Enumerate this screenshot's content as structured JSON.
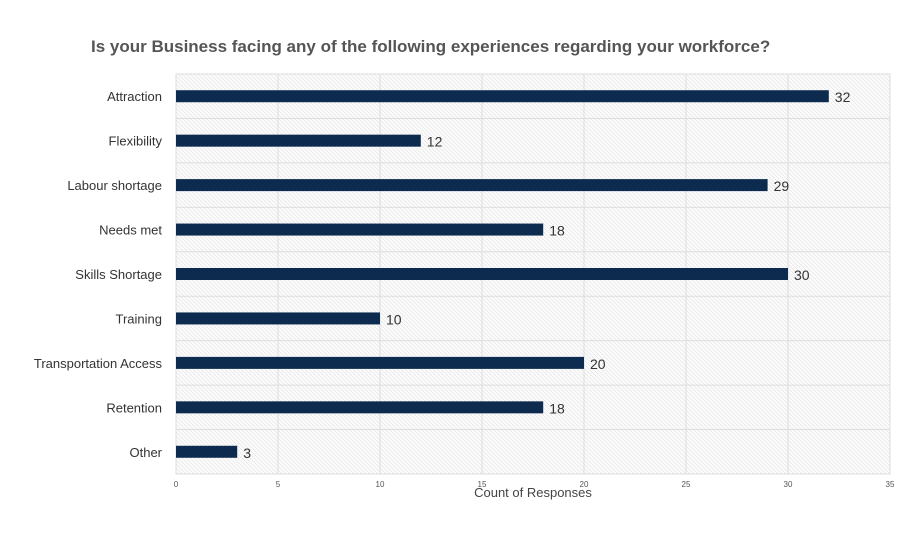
{
  "chart_data": {
    "type": "bar",
    "orientation": "horizontal",
    "title": "Is your Business facing any of the following experiences regarding your workforce?",
    "xlabel": "Count of Responses",
    "ylabel": "",
    "xlim": [
      0,
      35
    ],
    "x_ticks": [
      0,
      5,
      10,
      15,
      20,
      25,
      30,
      35
    ],
    "categories": [
      "Attraction",
      "Flexibility",
      "Labour shortage",
      "Needs met",
      "Skills Shortage",
      "Training",
      "Transportation Access",
      "Retention",
      "Other"
    ],
    "values": [
      32,
      12,
      29,
      18,
      30,
      10,
      20,
      18,
      3
    ],
    "data_labels": [
      "32",
      "12",
      "29",
      "18",
      "30",
      "10",
      "20",
      "18",
      "3"
    ],
    "bar_color": "#0d2b4e",
    "grid": true,
    "legend": "none"
  }
}
